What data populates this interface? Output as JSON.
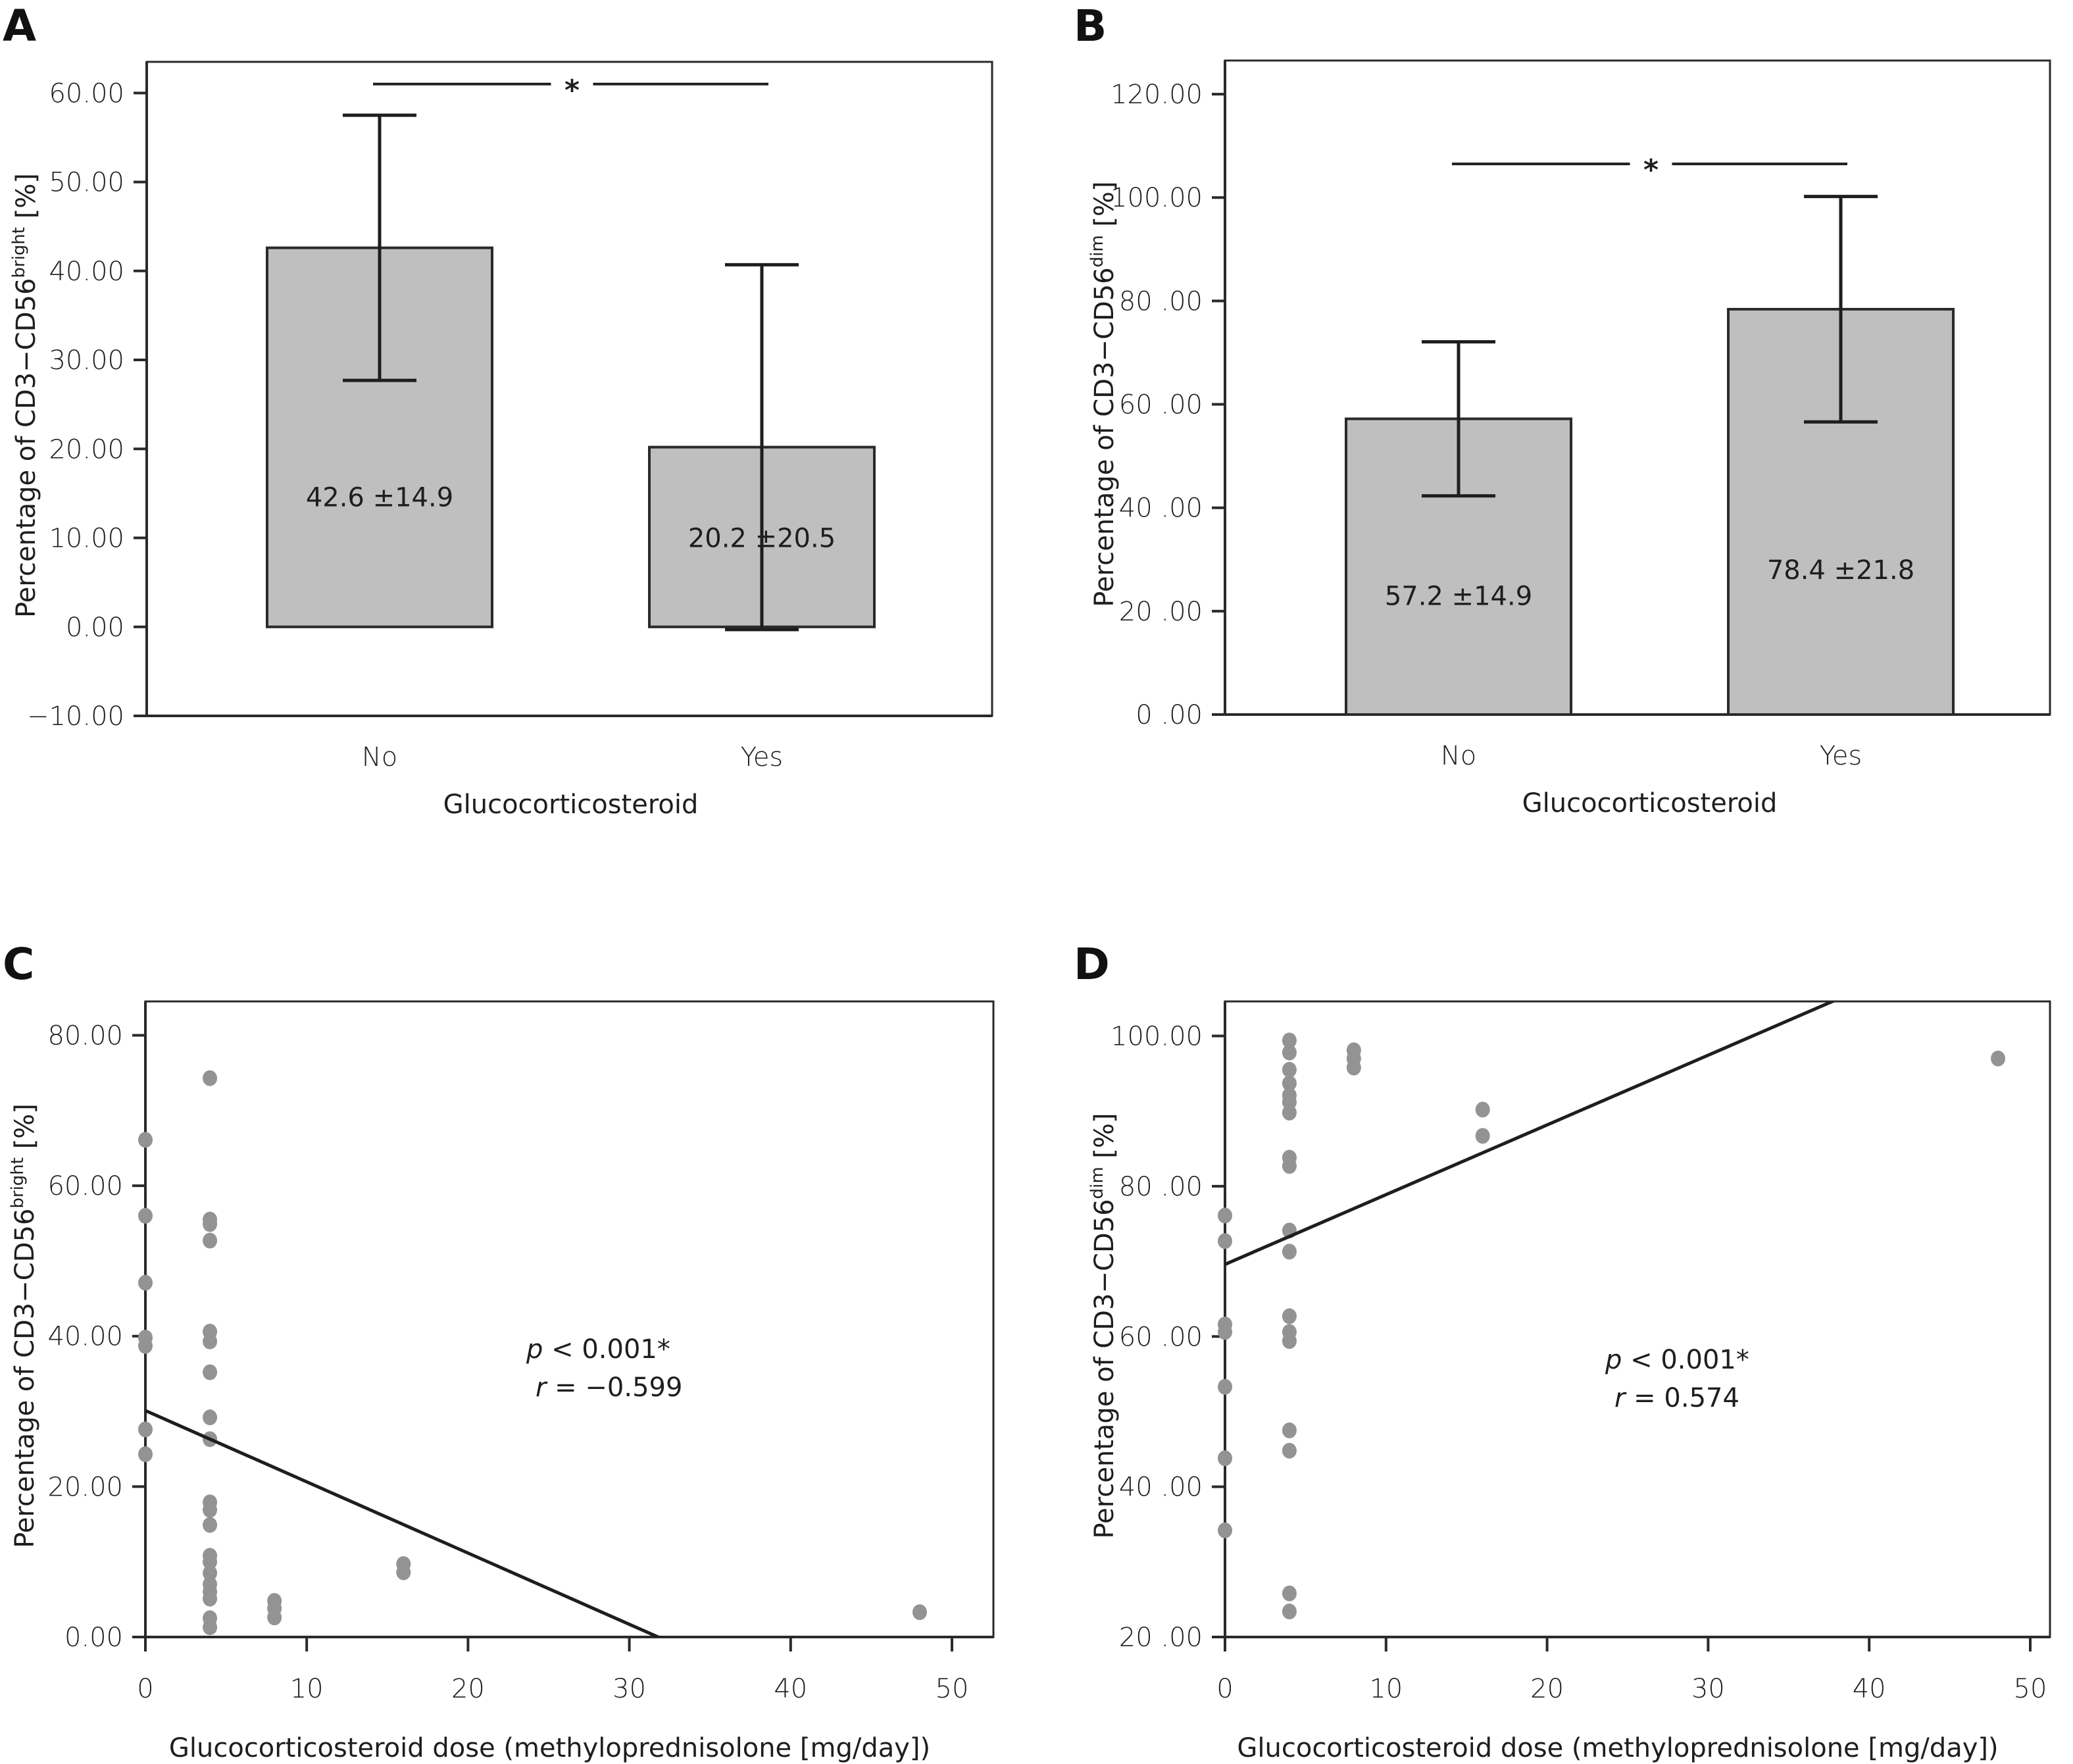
{
  "figure": {
    "panels": [
      "A",
      "B",
      "C",
      "D"
    ]
  },
  "chart_data": [
    {
      "id": "A",
      "type": "bar",
      "panel_letter": "A",
      "categories": [
        "No",
        "Yes"
      ],
      "values": [
        42.6,
        20.2
      ],
      "error": [
        14.9,
        20.5
      ],
      "bar_labels": [
        "42.6 ±14.9",
        "20.2 ±20.5"
      ],
      "xlabel": "Glucocorticosteroid",
      "ylabel": "Percentage of CD3−CD56",
      "ylabel_sup": "bright",
      "ylabel_suffix": " [%]",
      "ylim": [
        -10,
        63.5
      ],
      "yticks": [
        -10,
        0,
        10,
        20,
        30,
        40,
        50,
        60
      ],
      "ytick_labels": [
        "−10.00",
        "0.00",
        "10.00",
        "20.00",
        "30.00",
        "40.00",
        "50.00",
        "60.00"
      ],
      "significance": {
        "between": [
          "No",
          "Yes"
        ],
        "symbol": "*",
        "y": 61
      },
      "grid": false
    },
    {
      "id": "B",
      "type": "bar",
      "panel_letter": "B",
      "categories": [
        "No",
        "Yes"
      ],
      "values": [
        57.2,
        78.4
      ],
      "error": [
        14.9,
        21.8
      ],
      "bar_labels": [
        "57.2 ±14.9",
        "78.4 ±21.8"
      ],
      "xlabel": "Glucocorticosteroid",
      "ylabel": "Percentage of CD3−CD56",
      "ylabel_sup": "dim",
      "ylabel_suffix": " [%]",
      "ylim": [
        0,
        126.5
      ],
      "yticks": [
        0,
        20,
        40,
        60,
        80,
        100,
        120
      ],
      "ytick_labels": [
        "0 .00",
        "20 .00",
        "40 .00",
        "60 .00",
        "80 .00",
        "100.00",
        "120.00"
      ],
      "significance": {
        "between": [
          "No",
          "Yes"
        ],
        "symbol": "*",
        "y": 106.5
      },
      "grid": false
    },
    {
      "id": "C",
      "type": "scatter",
      "panel_letter": "C",
      "xlabel": "Glucocorticosteroid dose (methyloprednisolone [mg/day])",
      "ylabel": "Percentage of CD3−CD56",
      "ylabel_sup": "bright",
      "ylabel_suffix": " [%]",
      "xlim": [
        0,
        52.5
      ],
      "ylim": [
        0,
        84.5
      ],
      "xticks": [
        0,
        10,
        20,
        30,
        40,
        50
      ],
      "xtick_labels": [
        "0",
        "10",
        "20",
        "30",
        "40",
        "50"
      ],
      "yticks": [
        0,
        20,
        40,
        60,
        80
      ],
      "ytick_labels": [
        "0.00",
        "20.00",
        "40.00",
        "60.00",
        "80.00"
      ],
      "points": [
        [
          0,
          66.1
        ],
        [
          0,
          56.0
        ],
        [
          0,
          47.1
        ],
        [
          0,
          39.8
        ],
        [
          0,
          38.7
        ],
        [
          0,
          27.6
        ],
        [
          0,
          24.3
        ],
        [
          4,
          74.3
        ],
        [
          4,
          55.5
        ],
        [
          4,
          54.9
        ],
        [
          4,
          52.7
        ],
        [
          4,
          40.6
        ],
        [
          4,
          39.3
        ],
        [
          4,
          35.2
        ],
        [
          4,
          29.2
        ],
        [
          4,
          26.3
        ],
        [
          4,
          17.9
        ],
        [
          4,
          16.9
        ],
        [
          4,
          14.9
        ],
        [
          4,
          10.8
        ],
        [
          4,
          10.0
        ],
        [
          4,
          8.5
        ],
        [
          4,
          7.0
        ],
        [
          4,
          6.0
        ],
        [
          4,
          5.1
        ],
        [
          4,
          2.5
        ],
        [
          4,
          1.3
        ],
        [
          8,
          4.8
        ],
        [
          8,
          3.8
        ],
        [
          8,
          2.6
        ],
        [
          16,
          9.7
        ],
        [
          16,
          8.6
        ],
        [
          48,
          3.3
        ]
      ],
      "fit_line": {
        "intercept": 30.1,
        "slope": -0.947
      },
      "annotation": {
        "p_label": "p",
        "p_text": " < 0.001*",
        "r_label": "r",
        "r_text": " = −0.599"
      },
      "grid": false
    },
    {
      "id": "D",
      "type": "scatter",
      "panel_letter": "D",
      "xlabel": "Glucocorticosteroid dose (methyloprednisolone [mg/day])",
      "ylabel": "Percentage of CD3−CD56",
      "ylabel_sup": "dim",
      "ylabel_suffix": " [%]",
      "xlim": [
        0,
        51.5
      ],
      "ylim": [
        20,
        104.6
      ],
      "xticks": [
        0,
        10,
        20,
        30,
        40,
        50
      ],
      "xtick_labels": [
        "0",
        "10",
        "20",
        "30",
        "40",
        "50"
      ],
      "yticks": [
        20,
        40,
        60,
        80,
        100
      ],
      "ytick_labels": [
        "20 .00",
        "40 .00",
        "60 .00",
        "80 .00",
        "100.00"
      ],
      "points": [
        [
          0,
          76.1
        ],
        [
          0,
          72.7
        ],
        [
          0,
          61.6
        ],
        [
          0,
          60.6
        ],
        [
          0,
          53.3
        ],
        [
          0,
          43.8
        ],
        [
          0,
          34.2
        ],
        [
          4,
          99.4
        ],
        [
          4,
          97.8
        ],
        [
          4,
          95.5
        ],
        [
          4,
          93.7
        ],
        [
          4,
          92.1
        ],
        [
          4,
          91.2
        ],
        [
          4,
          89.8
        ],
        [
          4,
          83.8
        ],
        [
          4,
          82.7
        ],
        [
          4,
          74.1
        ],
        [
          4,
          71.3
        ],
        [
          4,
          62.7
        ],
        [
          4,
          60.6
        ],
        [
          4,
          59.4
        ],
        [
          4,
          47.5
        ],
        [
          4,
          44.8
        ],
        [
          4,
          25.8
        ],
        [
          4,
          23.4
        ],
        [
          8,
          98.1
        ],
        [
          8,
          97.0
        ],
        [
          8,
          95.8
        ],
        [
          16,
          90.2
        ],
        [
          16,
          86.7
        ],
        [
          48,
          97.0
        ]
      ],
      "fit_line": {
        "intercept": 69.6,
        "slope": 0.928
      },
      "annotation": {
        "p_label": "p",
        "p_text": " < 0.001*",
        "r_label": "r",
        "r_text": " = 0.574"
      },
      "grid": false
    }
  ]
}
